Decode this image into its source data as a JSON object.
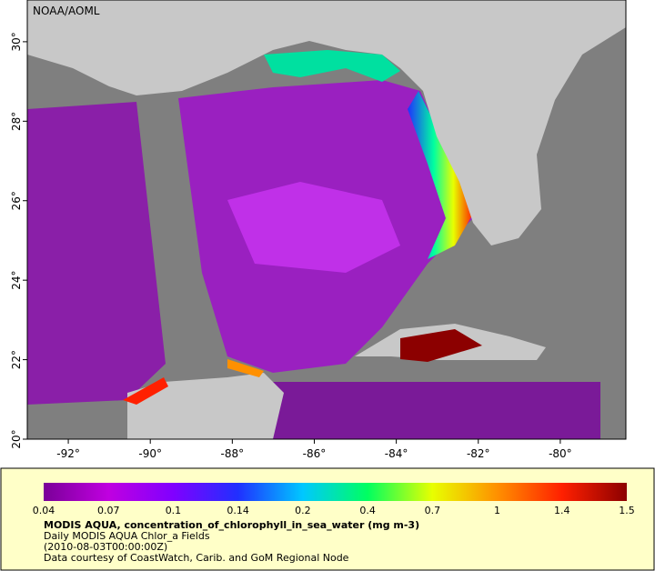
{
  "map": {
    "watermark": "NOAA/AOML",
    "xlim": [
      -93,
      -78.4
    ],
    "ylim": [
      20,
      31.05
    ],
    "xticks": [
      {
        "value": -92,
        "label": "-92°"
      },
      {
        "value": -90,
        "label": "-90°"
      },
      {
        "value": -88,
        "label": "-88°"
      },
      {
        "value": -86,
        "label": "-86°"
      },
      {
        "value": -84,
        "label": "-84°"
      },
      {
        "value": -82,
        "label": "-82°"
      },
      {
        "value": -80,
        "label": "-80°"
      }
    ],
    "yticks": [
      {
        "value": 20,
        "label": "20°"
      },
      {
        "value": 22,
        "label": "22°"
      },
      {
        "value": 24,
        "label": "24°"
      },
      {
        "value": 26,
        "label": "26°"
      },
      {
        "value": 28,
        "label": "28°"
      },
      {
        "value": 30,
        "label": "30°"
      }
    ]
  },
  "legend": {
    "ticks": [
      0.04,
      0.07,
      0.1,
      0.14,
      0.2,
      0.4,
      0.7,
      1,
      1.4,
      1.5
    ],
    "colors": [
      "#7a0098",
      "#c000e0",
      "#8000ff",
      "#2030ff",
      "#00c8ff",
      "#00ff60",
      "#e8ff00",
      "#ff9000",
      "#ff2000",
      "#8c0000"
    ],
    "title": "MODIS AQUA, concentration_of_chlorophyll_in_sea_water (mg m-3)",
    "lines": [
      "Daily MODIS AQUA Chlor_a Fields",
      "(2010-08-03T00:00:00Z)",
      "Data courtesy of CoastWatch, Carib. and GoM Regional Node"
    ]
  }
}
